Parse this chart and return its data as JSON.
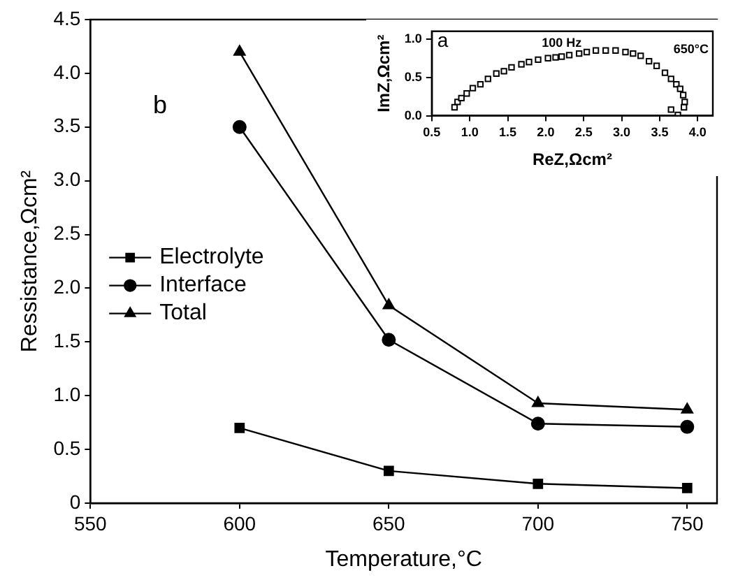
{
  "chart_data": [
    {
      "type": "line",
      "xlabel": "Temperature,°C",
      "ylabel": "Ressistance,Ωcm²",
      "x": [
        600,
        650,
        700,
        750
      ],
      "series": [
        {
          "name": "Electrolyte",
          "color": "#000000",
          "marker": "square",
          "values": [
            0.7,
            0.3,
            0.18,
            0.14
          ]
        },
        {
          "name": "Interface",
          "color": "#000000",
          "marker": "circle",
          "values": [
            3.5,
            1.52,
            0.74,
            0.71
          ]
        },
        {
          "name": "Total",
          "color": "#000000",
          "marker": "triangle",
          "values": [
            4.2,
            1.84,
            0.93,
            0.87
          ]
        }
      ],
      "xlim": [
        550,
        760
      ],
      "xticks": [
        550,
        600,
        650,
        700,
        750
      ],
      "ylim": [
        0,
        4.5
      ],
      "yticks": [
        0,
        {
          "value": 0.5,
          "label": "0.5"
        },
        {
          "value": 1,
          "label": "1.0"
        },
        {
          "value": 1.5,
          "label": "1.5"
        },
        {
          "value": 2,
          "label": "2.0"
        },
        {
          "value": 2.5,
          "label": "2.5"
        },
        {
          "value": 3,
          "label": "3.0"
        },
        {
          "value": 3.5,
          "label": "3.5"
        },
        {
          "value": 4,
          "label": "4.0"
        },
        {
          "value": 4.5,
          "label": "4.5"
        }
      ],
      "grid": false,
      "legend": "left",
      "line_style": "solid",
      "annotations": [
        "b"
      ]
    },
    {
      "type": "scatter",
      "xlabel": "ReZ,Ωcm²",
      "ylabel": "ImZ,Ωcm²",
      "marker": "square",
      "legend": false,
      "grid": false,
      "series": [
        {
          "color": "#000000",
          "x": [
            0.8,
            0.84,
            0.89,
            0.96,
            1.04,
            1.14,
            1.24,
            1.35,
            1.45,
            1.55,
            1.68,
            1.78,
            1.9,
            2.03,
            2.13,
            2.21,
            2.31,
            2.44,
            2.54,
            2.66,
            2.79,
            2.92,
            3.05,
            3.15,
            3.25,
            3.36,
            3.46,
            3.57,
            3.65,
            3.72,
            3.77,
            3.81,
            3.83,
            3.82,
            3.74,
            3.65
          ],
          "values": [
            0.11,
            0.18,
            0.23,
            0.29,
            0.36,
            0.41,
            0.48,
            0.55,
            0.58,
            0.63,
            0.67,
            0.7,
            0.73,
            0.75,
            0.76,
            0.77,
            0.79,
            0.81,
            0.83,
            0.85,
            0.85,
            0.85,
            0.83,
            0.81,
            0.78,
            0.71,
            0.65,
            0.56,
            0.48,
            0.41,
            0.35,
            0.27,
            0.18,
            0.11,
            0.01,
            0.08
          ]
        }
      ],
      "xlim": [
        0.5,
        4.2
      ],
      "xticks": [
        0.5,
        {
          "value": 1,
          "label": "1.0"
        },
        1.5,
        {
          "value": 2,
          "label": "2.0"
        },
        2.5,
        {
          "value": 3,
          "label": "3.0"
        },
        3.5,
        {
          "value": 4,
          "label": "4.0"
        }
      ],
      "ylim": [
        0,
        1.1
      ],
      "yticks": [
        {
          "value": 0,
          "label": "0.0"
        },
        0.5,
        {
          "value": 1,
          "label": "1.0"
        }
      ],
      "annotations": [
        "a",
        {
          "text": "100 Hz",
          "x": 2.21,
          "y": 0.77
        },
        "650°C"
      ]
    }
  ]
}
